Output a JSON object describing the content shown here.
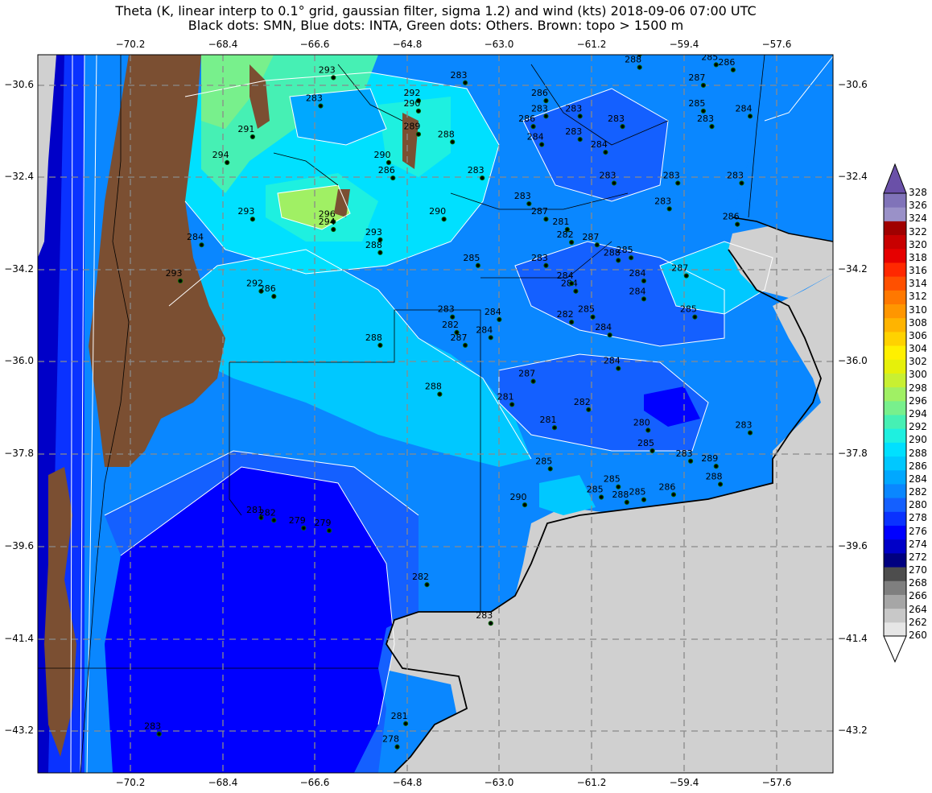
{
  "title_line1": "Theta (K, linear interp to 0.1° grid, gaussian filter, sigma 1.2) and wind (kts) 2018-09-06 07:00 UTC",
  "title_line2": "Black dots: SMN, Blue dots: INTA, Green dots: Others. Brown: topo > 1500 m",
  "lon_ticks": [
    "−70.2",
    "−68.4",
    "−66.6",
    "−64.8",
    "−63.0",
    "−61.2",
    "−59.4",
    "−57.6"
  ],
  "lat_ticks": [
    "−30.6",
    "−32.4",
    "−34.2",
    "−36.0",
    "−37.8",
    "−39.6",
    "−41.4",
    "−43.2"
  ],
  "colorbar": {
    "levels": [
      260,
      262,
      264,
      266,
      268,
      270,
      272,
      274,
      276,
      278,
      280,
      282,
      284,
      286,
      288,
      290,
      292,
      294,
      296,
      298,
      300,
      302,
      304,
      306,
      308,
      310,
      312,
      314,
      316,
      318,
      320,
      322,
      324,
      326,
      328
    ],
    "colors": [
      "#ffffff",
      "#e6e6e6",
      "#c8c8c8",
      "#a6a6a6",
      "#7f7f7f",
      "#4d4d4d",
      "#000080",
      "#0000c8",
      "#0000ff",
      "#0a32ff",
      "#1460ff",
      "#0a87ff",
      "#00a8ff",
      "#00c8ff",
      "#00e0ff",
      "#1ef0e0",
      "#46f0b4",
      "#78f08c",
      "#a0f064",
      "#c8f032",
      "#e6f00a",
      "#fff000",
      "#ffd200",
      "#ffb400",
      "#ff9600",
      "#ff7800",
      "#ff5000",
      "#ff2800",
      "#e60000",
      "#c80000",
      "#a00000",
      "#9a91c8",
      "#8073b9",
      "#6a50a8"
    ]
  },
  "station_labels": [
    {
      "t": "293",
      "lon": -66.9,
      "lat": -30.35
    },
    {
      "t": "283",
      "lon": -67.2,
      "lat": -30.9
    },
    {
      "t": "291",
      "lon": -68.8,
      "lat": -31.5
    },
    {
      "t": "294",
      "lon": -69.4,
      "lat": -32.0
    },
    {
      "t": "293",
      "lon": -68.8,
      "lat": -33.1
    },
    {
      "t": "284",
      "lon": -70.0,
      "lat": -33.6
    },
    {
      "t": "293",
      "lon": -70.5,
      "lat": -34.3
    },
    {
      "t": "292",
      "lon": -68.6,
      "lat": -34.5
    },
    {
      "t": "286",
      "lon": -68.3,
      "lat": -34.6
    },
    {
      "t": "296",
      "lon": -66.9,
      "lat": -33.15
    },
    {
      "t": "294",
      "lon": -66.9,
      "lat": -33.3
    },
    {
      "t": "293",
      "lon": -65.8,
      "lat": -33.5
    },
    {
      "t": "288",
      "lon": -65.8,
      "lat": -33.75
    },
    {
      "t": "290",
      "lon": -65.6,
      "lat": -32.0
    },
    {
      "t": "286",
      "lon": -65.5,
      "lat": -32.3
    },
    {
      "t": "292",
      "lon": -64.9,
      "lat": -30.8
    },
    {
      "t": "290",
      "lon": -64.9,
      "lat": -31.0
    },
    {
      "t": "289",
      "lon": -64.9,
      "lat": -31.45
    },
    {
      "t": "288",
      "lon": -64.1,
      "lat": -31.6
    },
    {
      "t": "290",
      "lon": -64.3,
      "lat": -33.1
    },
    {
      "t": "283",
      "lon": -63.8,
      "lat": -30.45
    },
    {
      "t": "283",
      "lon": -63.4,
      "lat": -32.3
    },
    {
      "t": "283",
      "lon": -62.3,
      "lat": -32.8
    },
    {
      "t": "287",
      "lon": -61.9,
      "lat": -33.1
    },
    {
      "t": "286",
      "lon": -61.9,
      "lat": -30.8
    },
    {
      "t": "283",
      "lon": -61.9,
      "lat": -31.1
    },
    {
      "t": "286",
      "lon": -62.2,
      "lat": -31.3
    },
    {
      "t": "284",
      "lon": -62.0,
      "lat": -31.65
    },
    {
      "t": "283",
      "lon": -61.1,
      "lat": -31.55
    },
    {
      "t": "283",
      "lon": -61.1,
      "lat": -31.1
    },
    {
      "t": "283",
      "lon": -60.1,
      "lat": -31.3
    },
    {
      "t": "284",
      "lon": -60.5,
      "lat": -31.8
    },
    {
      "t": "281",
      "lon": -61.4,
      "lat": -33.3
    },
    {
      "t": "282",
      "lon": -61.3,
      "lat": -33.55
    },
    {
      "t": "287",
      "lon": -60.7,
      "lat": -33.6
    },
    {
      "t": "283",
      "lon": -61.9,
      "lat": -34.0
    },
    {
      "t": "285",
      "lon": -63.5,
      "lat": -34.0
    },
    {
      "t": "283",
      "lon": -64.1,
      "lat": -35.0
    },
    {
      "t": "282",
      "lon": -64.0,
      "lat": -35.3
    },
    {
      "t": "287",
      "lon": -63.8,
      "lat": -35.55
    },
    {
      "t": "284",
      "lon": -63.0,
      "lat": -35.05
    },
    {
      "t": "284",
      "lon": -63.2,
      "lat": -35.4
    },
    {
      "t": "288",
      "lon": -65.8,
      "lat": -35.55
    },
    {
      "t": "288",
      "lon": -64.4,
      "lat": -36.5
    },
    {
      "t": "287",
      "lon": -62.2,
      "lat": -36.25
    },
    {
      "t": "281",
      "lon": -62.7,
      "lat": -36.7
    },
    {
      "t": "281",
      "lon": -61.7,
      "lat": -37.15
    },
    {
      "t": "282",
      "lon": -60.9,
      "lat": -36.8
    },
    {
      "t": "284",
      "lon": -61.2,
      "lat": -34.5
    },
    {
      "t": "284",
      "lon": -61.3,
      "lat": -34.35
    },
    {
      "t": "282",
      "lon": -61.3,
      "lat": -35.1
    },
    {
      "t": "285",
      "lon": -60.8,
      "lat": -35.0
    },
    {
      "t": "284",
      "lon": -60.4,
      "lat": -35.35
    },
    {
      "t": "284",
      "lon": -60.2,
      "lat": -36.0
    },
    {
      "t": "285",
      "lon": -59.9,
      "lat": -33.85
    },
    {
      "t": "288",
      "lon": -60.2,
      "lat": -33.9
    },
    {
      "t": "284",
      "lon": -59.6,
      "lat": -34.3
    },
    {
      "t": "284",
      "lon": -59.6,
      "lat": -34.65
    },
    {
      "t": "287",
      "lon": -58.6,
      "lat": -34.2
    },
    {
      "t": "285",
      "lon": -58.4,
      "lat": -35.0
    },
    {
      "t": "283",
      "lon": -60.3,
      "lat": -32.4
    },
    {
      "t": "283",
      "lon": -58.8,
      "lat": -32.4
    },
    {
      "t": "283",
      "lon": -59.0,
      "lat": -32.9
    },
    {
      "t": "283",
      "lon": -57.3,
      "lat": -32.4
    },
    {
      "t": "286",
      "lon": -57.4,
      "lat": -33.2
    },
    {
      "t": "284",
      "lon": -57.1,
      "lat": -31.1
    },
    {
      "t": "285",
      "lon": -58.2,
      "lat": -31.0
    },
    {
      "t": "283",
      "lon": -58.0,
      "lat": -31.3
    },
    {
      "t": "287",
      "lon": -58.2,
      "lat": -30.5
    },
    {
      "t": "285",
      "lon": -57.9,
      "lat": -30.1
    },
    {
      "t": "288",
      "lon": -59.7,
      "lat": -29.9
    },
    {
      "t": "288",
      "lon": -59.7,
      "lat": -30.15
    },
    {
      "t": "286",
      "lon": -57.5,
      "lat": -30.2
    },
    {
      "t": "280",
      "lon": -59.5,
      "lat": -37.2
    },
    {
      "t": "285",
      "lon": -59.4,
      "lat": -37.6
    },
    {
      "t": "283",
      "lon": -57.1,
      "lat": -37.25
    },
    {
      "t": "283",
      "lon": -58.5,
      "lat": -37.8
    },
    {
      "t": "289",
      "lon": -57.9,
      "lat": -37.9
    },
    {
      "t": "288",
      "lon": -57.8,
      "lat": -38.25
    },
    {
      "t": "285",
      "lon": -61.8,
      "lat": -37.95
    },
    {
      "t": "285",
      "lon": -60.6,
      "lat": -38.5
    },
    {
      "t": "285",
      "lon": -60.2,
      "lat": -38.3
    },
    {
      "t": "288",
      "lon": -60.0,
      "lat": -38.6
    },
    {
      "t": "285",
      "lon": -59.6,
      "lat": -38.55
    },
    {
      "t": "286",
      "lon": -58.9,
      "lat": -38.45
    },
    {
      "t": "290",
      "lon": -62.4,
      "lat": -38.65
    },
    {
      "t": "282",
      "lon": -64.7,
      "lat": -40.2
    },
    {
      "t": "283",
      "lon": -63.2,
      "lat": -40.95
    },
    {
      "t": "281",
      "lon": -68.6,
      "lat": -38.9
    },
    {
      "t": "282",
      "lon": -68.3,
      "lat": -38.95
    },
    {
      "t": "279",
      "lon": -67.6,
      "lat": -39.1
    },
    {
      "t": "279",
      "lon": -67.0,
      "lat": -39.15
    },
    {
      "t": "281",
      "lon": -65.2,
      "lat": -42.9
    },
    {
      "t": "278",
      "lon": -65.4,
      "lat": -43.35
    },
    {
      "t": "283",
      "lon": -71.0,
      "lat": -43.1
    }
  ]
}
